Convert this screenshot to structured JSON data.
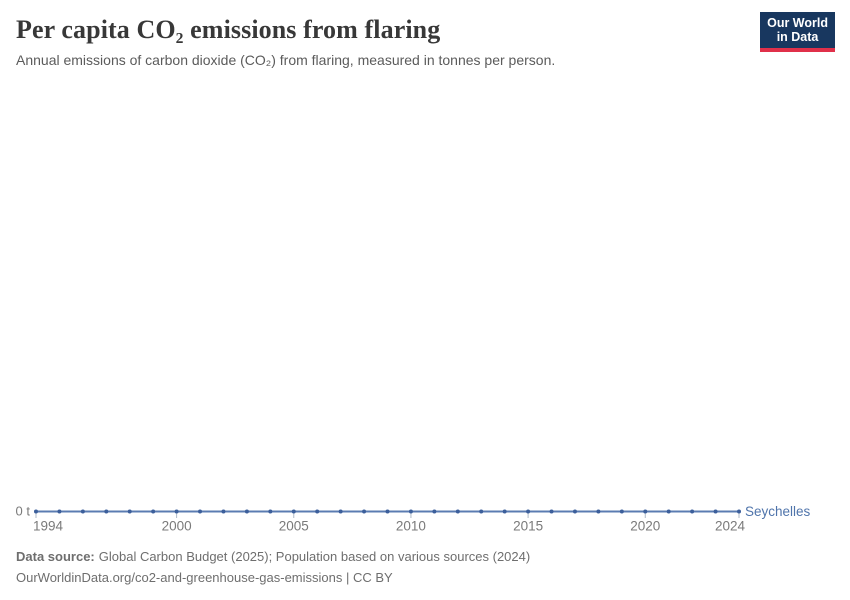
{
  "header": {
    "title": "Per capita CO₂ emissions from flaring",
    "subtitle": "Annual emissions of carbon dioxide (CO₂) from flaring, measured in tonnes per person.",
    "logo": {
      "line1": "Our World",
      "line2": "in Data"
    }
  },
  "chart_data": {
    "type": "line",
    "title": "Per capita CO₂ emissions from flaring",
    "ylabel": "tonnes per person",
    "x": [
      1994,
      1995,
      1996,
      1997,
      1998,
      1999,
      2000,
      2001,
      2002,
      2003,
      2004,
      2005,
      2006,
      2007,
      2008,
      2009,
      2010,
      2011,
      2012,
      2013,
      2014,
      2015,
      2016,
      2017,
      2018,
      2019,
      2020,
      2021,
      2022,
      2023,
      2024
    ],
    "series": [
      {
        "name": "Seychelles",
        "values": [
          0,
          0,
          0,
          0,
          0,
          0,
          0,
          0,
          0,
          0,
          0,
          0,
          0,
          0,
          0,
          0,
          0,
          0,
          0,
          0,
          0,
          0,
          0,
          0,
          0,
          0,
          0,
          0,
          0,
          0,
          0
        ]
      }
    ],
    "x_ticks": [
      1994,
      2000,
      2005,
      2010,
      2015,
      2020,
      2024
    ],
    "y_zero_label": "0 t",
    "ylim": [
      0,
      0
    ],
    "grid": false,
    "legend_position": "end-of-line",
    "colors": {
      "line": "#5B7CB2",
      "point": "#3C5F9B",
      "series_label": "#4F74AB",
      "tick_mark": "#AFBAC7",
      "axis_text": "#7A7A7A"
    }
  },
  "footer": {
    "data_source_label": "Data source:",
    "data_source_text": "Global Carbon Budget (2025); Population based on various sources (2024)",
    "url_line": "OurWorldinData.org/co2-and-greenhouse-gas-emissions | CC BY"
  }
}
